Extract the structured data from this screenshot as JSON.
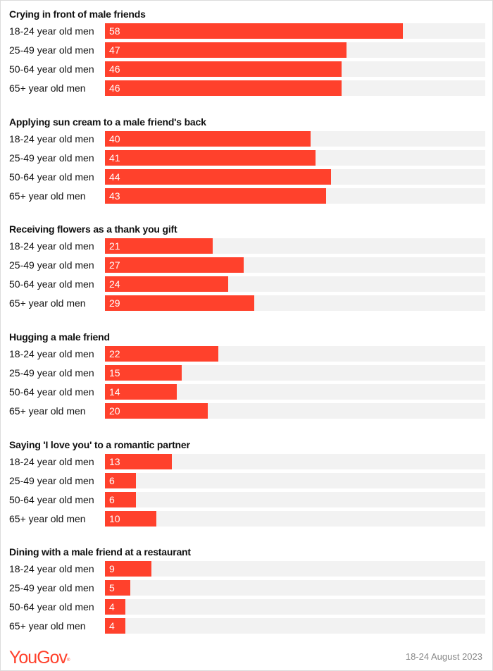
{
  "chart_data": {
    "type": "bar",
    "orientation": "horizontal",
    "xlim": [
      0,
      74
    ],
    "grid": false,
    "legend": null,
    "categories": [
      "18-24 year old men",
      "25-49 year old men",
      "50-64 year old men",
      "65+ year old men"
    ],
    "groups": [
      {
        "title": "Crying in front of male friends",
        "values": [
          58,
          47,
          46,
          46
        ]
      },
      {
        "title": "Applying sun cream to a male friend's back",
        "values": [
          40,
          41,
          44,
          43
        ]
      },
      {
        "title": "Receiving flowers as a thank you gift",
        "values": [
          21,
          27,
          24,
          29
        ]
      },
      {
        "title": "Hugging a male friend",
        "values": [
          22,
          15,
          14,
          20
        ]
      },
      {
        "title": "Saying 'I love you' to a romantic partner",
        "values": [
          13,
          6,
          6,
          10
        ]
      },
      {
        "title": "Dining with a male friend at a restaurant",
        "values": [
          9,
          5,
          4,
          4
        ]
      }
    ],
    "colors": {
      "bar": "#ff412c",
      "track": "#f2f2f2"
    }
  },
  "sections": [
    {
      "title": "Crying in front of male friends",
      "rows": [
        {
          "label": "18-24 year old men",
          "value": "58"
        },
        {
          "label": "25-49 year old men",
          "value": "47"
        },
        {
          "label": "50-64 year old men",
          "value": "46"
        },
        {
          "label": "65+ year old men",
          "value": "46"
        }
      ]
    },
    {
      "title": "Applying sun cream to a male friend's back",
      "rows": [
        {
          "label": "18-24 year old men",
          "value": "40"
        },
        {
          "label": "25-49 year old men",
          "value": "41"
        },
        {
          "label": "50-64 year old men",
          "value": "44"
        },
        {
          "label": "65+ year old men",
          "value": "43"
        }
      ]
    },
    {
      "title": "Receiving flowers as a thank you gift",
      "rows": [
        {
          "label": "18-24 year old men",
          "value": "21"
        },
        {
          "label": "25-49 year old men",
          "value": "27"
        },
        {
          "label": "50-64 year old men",
          "value": "24"
        },
        {
          "label": "65+ year old men",
          "value": "29"
        }
      ]
    },
    {
      "title": "Hugging a male friend",
      "rows": [
        {
          "label": "18-24 year old men",
          "value": "22"
        },
        {
          "label": "25-49 year old men",
          "value": "15"
        },
        {
          "label": "50-64 year old men",
          "value": "14"
        },
        {
          "label": "65+ year old men",
          "value": "20"
        }
      ]
    },
    {
      "title": "Saying 'I love you' to a romantic partner",
      "rows": [
        {
          "label": "18-24 year old men",
          "value": "13"
        },
        {
          "label": "25-49 year old men",
          "value": "6"
        },
        {
          "label": "50-64 year old men",
          "value": "6"
        },
        {
          "label": "65+ year old men",
          "value": "10"
        }
      ]
    },
    {
      "title": "Dining with a male friend at a restaurant",
      "rows": [
        {
          "label": "18-24 year old men",
          "value": "9"
        },
        {
          "label": "25-49 year old men",
          "value": "5"
        },
        {
          "label": "50-64 year old men",
          "value": "4"
        },
        {
          "label": "65+ year old men",
          "value": "4"
        }
      ]
    }
  ],
  "footer": {
    "logo": "YouGov",
    "logo_mark": "®",
    "date": "18-24 August 2023"
  }
}
